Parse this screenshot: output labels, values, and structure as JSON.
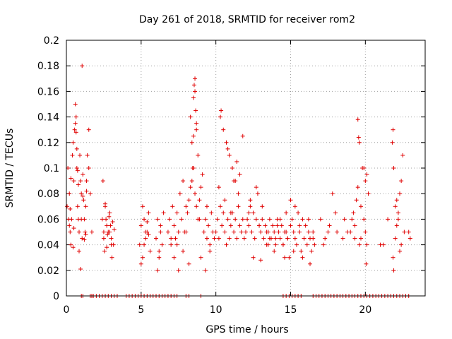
{
  "chart_data": {
    "type": "scatter",
    "title": "Day 261 of 2018, SRMTID for receiver rom2",
    "xlabel": "GPS time / hours",
    "ylabel": "SRMTID / TECUs",
    "xlim": [
      0,
      24
    ],
    "ylim": [
      0,
      0.2
    ],
    "xticks": [
      0,
      5,
      10,
      15,
      20
    ],
    "xtick_labels": [
      "0",
      "5",
      "10",
      "15",
      "20"
    ],
    "yticks": [
      0,
      0.02,
      0.04,
      0.06,
      0.08,
      0.1,
      0.12,
      0.14,
      0.16,
      0.18,
      0.2
    ],
    "ytick_labels": [
      "0",
      "0.02",
      "0.04",
      "0.06",
      "0.08",
      "0.1",
      "0.12",
      "0.14",
      "0.16",
      "0.18",
      "0.2"
    ],
    "grid": true,
    "marker": "+",
    "color": "#e00000",
    "series": [
      {
        "name": "SRMTID",
        "x": [
          0.05,
          0.1,
          0.15,
          0.2,
          0.25,
          0.3,
          0.35,
          0.4,
          0.45,
          0.5,
          0.55,
          0.6,
          0.65,
          0.7,
          0.75,
          0.8,
          0.85,
          0.9,
          0.95,
          1.0,
          1.05,
          1.1,
          1.15,
          1.2,
          1.25,
          1.3,
          1.35,
          1.4,
          1.5,
          1.6,
          1.7,
          0.6,
          0.65,
          0.7,
          0.75,
          0.8,
          0.5,
          0.45,
          1.0,
          1.05,
          0.3,
          0.2,
          0.25,
          1.2,
          1.35,
          1.5,
          0.85,
          0.95,
          1.1,
          1.3,
          2.4,
          2.5,
          2.6,
          2.7,
          2.8,
          2.9,
          3.0,
          3.1,
          3.2,
          2.45,
          2.55,
          2.65,
          2.75,
          2.85,
          2.95,
          3.05,
          3.15,
          2.6,
          2.9,
          3.0,
          2.5,
          2.7,
          4.9,
          5.0,
          5.1,
          5.2,
          5.3,
          5.4,
          5.5,
          5.6,
          5.0,
          5.2,
          5.4,
          5.1,
          5.3,
          5.5,
          6.0,
          6.1,
          6.2,
          6.3,
          6.4,
          6.5,
          6.1,
          6.3,
          6.2,
          6.8,
          6.9,
          7.0,
          7.1,
          7.2,
          7.3,
          7.4,
          7.5,
          7.6,
          7.7,
          7.8,
          7.9,
          8.0,
          8.1,
          8.2,
          8.3,
          8.4,
          8.5,
          8.6,
          8.7,
          8.8,
          8.9,
          9.0,
          9.1,
          9.2,
          9.3,
          9.4,
          9.5,
          9.6,
          9.7,
          9.8,
          9.9,
          8.3,
          8.4,
          8.5,
          8.55,
          8.6,
          8.7,
          8.8,
          8.45,
          8.5,
          8.6,
          8.65,
          8.7,
          7.2,
          7.5,
          7.8,
          8.2,
          9.0,
          9.3,
          7.0,
          7.4,
          8.0,
          8.9,
          9.4,
          9.6,
          10.0,
          10.1,
          10.2,
          10.3,
          10.4,
          10.5,
          10.6,
          10.7,
          10.8,
          10.9,
          11.0,
          11.1,
          11.2,
          11.3,
          11.4,
          11.5,
          11.6,
          11.7,
          11.8,
          11.9,
          12.0,
          10.3,
          10.5,
          10.7,
          10.9,
          11.1,
          11.3,
          11.5,
          11.6,
          10.2,
          10.6,
          11.0,
          11.4,
          11.8,
          10.35,
          10.8,
          11.2,
          12.1,
          12.2,
          12.3,
          12.4,
          12.5,
          12.6,
          12.7,
          12.8,
          12.9,
          13.0,
          13.1,
          13.2,
          13.3,
          13.4,
          13.5,
          13.6,
          13.7,
          13.8,
          13.9,
          14.0,
          14.1,
          14.2,
          14.3,
          14.4,
          14.5,
          14.6,
          14.7,
          14.8,
          12.3,
          12.7,
          13.1,
          13.5,
          13.9,
          14.3,
          14.7,
          12.5,
          13.0,
          13.6,
          14.1,
          14.6,
          12.2,
          12.9,
          13.4,
          14.0,
          14.5,
          14.8,
          14.9,
          15.0,
          15.1,
          15.2,
          15.3,
          15.4,
          15.5,
          15.6,
          15.7,
          15.8,
          15.9,
          16.0,
          16.1,
          16.2,
          16.3,
          16.4,
          16.5,
          16.6,
          15.0,
          15.3,
          15.6,
          15.9,
          16.2,
          16.5,
          15.2,
          15.8,
          16.3,
          17.0,
          17.3,
          17.5,
          17.8,
          18.1,
          18.5,
          18.8,
          17.2,
          17.6,
          18.0,
          18.6,
          19.0,
          19.1,
          19.2,
          19.3,
          19.4,
          19.5,
          19.6,
          19.7,
          19.8,
          19.9,
          20.0,
          20.1,
          20.2,
          19.5,
          19.6,
          19.55,
          19.9,
          20.0,
          20.1,
          19.3,
          19.7,
          20.05,
          21.0,
          21.2,
          21.5,
          21.8,
          21.85,
          21.9,
          22.0,
          22.1,
          22.2,
          22.3,
          22.4,
          22.5,
          22.6,
          21.85,
          21.9,
          22.0,
          22.2,
          22.4,
          22.3,
          22.1,
          22.9,
          23.0
        ],
        "y": [
          0.07,
          0.1,
          0.06,
          0.08,
          0.05,
          0.04,
          0.06,
          0.11,
          0.12,
          0.09,
          0.13,
          0.15,
          0.14,
          0.1,
          0.07,
          0.06,
          0.05,
          0.11,
          0.09,
          0.08,
          0.18,
          0.095,
          0.075,
          0.06,
          0.05,
          0.07,
          0.09,
          0.11,
          0.13,
          0.08,
          0.05,
          0.135,
          0.128,
          0.115,
          0.098,
          0.087,
          0.053,
          0.038,
          0.06,
          0.045,
          0.092,
          0.055,
          0.068,
          0.044,
          0.082,
          0.1,
          0.035,
          0.021,
          0.078,
          0.048,
          0.06,
          0.045,
          0.07,
          0.055,
          0.05,
          0.065,
          0.04,
          0.058,
          0.052,
          0.09,
          0.035,
          0.06,
          0.048,
          0.062,
          0.055,
          0.03,
          0.04,
          0.072,
          0.05,
          0.045,
          0.05,
          0.038,
          0.04,
          0.055,
          0.03,
          0.06,
          0.045,
          0.05,
          0.065,
          0.035,
          0.025,
          0.04,
          0.058,
          0.07,
          0.05,
          0.048,
          0.045,
          0.06,
          0.03,
          0.055,
          0.04,
          0.065,
          0.02,
          0.05,
          0.035,
          0.05,
          0.06,
          0.04,
          0.07,
          0.055,
          0.045,
          0.065,
          0.05,
          0.08,
          0.06,
          0.09,
          0.05,
          0.07,
          0.065,
          0.075,
          0.085,
          0.09,
          0.1,
          0.08,
          0.07,
          0.06,
          0.075,
          0.085,
          0.095,
          0.05,
          0.06,
          0.07,
          0.055,
          0.04,
          0.065,
          0.05,
          0.045,
          0.14,
          0.12,
          0.155,
          0.165,
          0.17,
          0.13,
          0.11,
          0.1,
          0.125,
          0.16,
          0.145,
          0.135,
          0.03,
          0.02,
          0.035,
          0.025,
          0.03,
          0.02,
          0.045,
          0.04,
          0.05,
          0.06,
          0.045,
          0.035,
          0.05,
          0.06,
          0.045,
          0.07,
          0.055,
          0.065,
          0.05,
          0.04,
          0.06,
          0.045,
          0.055,
          0.065,
          0.05,
          0.06,
          0.045,
          0.07,
          0.055,
          0.05,
          0.06,
          0.045,
          0.05,
          0.14,
          0.13,
          0.12,
          0.11,
          0.1,
          0.09,
          0.08,
          0.095,
          0.085,
          0.075,
          0.065,
          0.105,
          0.125,
          0.145,
          0.115,
          0.09,
          0.06,
          0.055,
          0.07,
          0.05,
          0.065,
          0.045,
          0.06,
          0.08,
          0.055,
          0.05,
          0.06,
          0.045,
          0.055,
          0.04,
          0.05,
          0.06,
          0.045,
          0.055,
          0.05,
          0.04,
          0.06,
          0.05,
          0.045,
          0.055,
          0.04,
          0.05,
          0.065,
          0.045,
          0.075,
          0.085,
          0.07,
          0.04,
          0.035,
          0.06,
          0.05,
          0.03,
          0.028,
          0.045,
          0.055,
          0.03,
          0.065,
          0.055,
          0.05,
          0.045,
          0.04,
          0.045,
          0.03,
          0.055,
          0.06,
          0.05,
          0.045,
          0.04,
          0.065,
          0.05,
          0.035,
          0.06,
          0.045,
          0.055,
          0.04,
          0.05,
          0.045,
          0.035,
          0.05,
          0.04,
          0.075,
          0.07,
          0.055,
          0.045,
          0.06,
          0.045,
          0.035,
          0.03,
          0.025,
          0.06,
          0.045,
          0.05,
          0.08,
          0.05,
          0.045,
          0.05,
          0.04,
          0.055,
          0.065,
          0.06,
          0.05,
          0.06,
          0.065,
          0.045,
          0.075,
          0.085,
          0.04,
          0.07,
          0.1,
          0.06,
          0.05,
          0.04,
          0.08,
          0.138,
          0.12,
          0.124,
          0.1,
          0.09,
          0.095,
          0.055,
          0.045,
          0.025,
          0.04,
          0.04,
          0.06,
          0.12,
          0.13,
          0.1,
          0.07,
          0.055,
          0.065,
          0.08,
          0.09,
          0.11,
          0.05,
          0.03,
          0.02,
          0.045,
          0.06,
          0.04,
          0.035,
          0.075,
          0.05,
          0.045
        ]
      }
    ],
    "zero_band": {
      "y": 0,
      "x": [
        1.0,
        1.1,
        1.6,
        1.7,
        1.8,
        2.0,
        2.2,
        2.4,
        2.6,
        2.8,
        3.0,
        3.2,
        3.4,
        4.0,
        4.2,
        4.4,
        4.6,
        4.8,
        5.0,
        5.2,
        5.4,
        5.6,
        5.8,
        6.0,
        6.2,
        6.4,
        6.6,
        6.8,
        7.0,
        7.2,
        7.4,
        8.0,
        8.2,
        9.0,
        14.5,
        14.7,
        14.9,
        15.1,
        15.3,
        15.5,
        15.7,
        16.5,
        16.7,
        16.9,
        17.1,
        17.3,
        17.5,
        17.7,
        17.9,
        18.1,
        18.3,
        18.5,
        18.7,
        18.9,
        19.1,
        19.3,
        19.5,
        19.7,
        19.9,
        20.1,
        20.3,
        20.5,
        20.7,
        20.9,
        21.1,
        21.3,
        21.5,
        21.7,
        21.9,
        22.1,
        22.3,
        22.5,
        22.7,
        22.9
      ]
    }
  }
}
